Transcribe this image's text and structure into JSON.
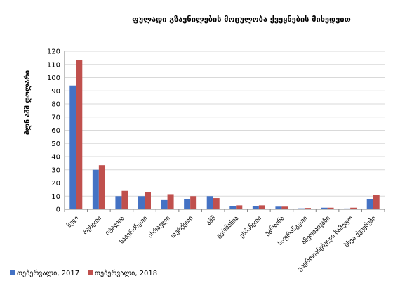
{
  "chart_data": {
    "type": "bar",
    "title": "ფულადი გზავნილების მოცულობა ქვეყნების მიხედვით",
    "ylabel": "მლნ აშშ დოლარი",
    "xlabel": "",
    "ylim": [
      0,
      120
    ],
    "y_ticks": [
      0,
      10,
      20,
      30,
      40,
      50,
      60,
      70,
      80,
      90,
      100,
      110,
      120
    ],
    "grid": true,
    "legend_position": "bottom",
    "categories": [
      "სულ",
      "რუსეთი",
      "იტალია",
      "საბერძნეთი",
      "ისრაელი",
      "თურქეთი",
      "აშშ",
      "გერმანია",
      "ესპანეთი",
      "უკრაინა",
      "საფრანგეთი",
      "აზერბაიჯანი",
      "გაერთიანებული სამეფო",
      "სხვა ქვეყნები"
    ],
    "series": [
      {
        "name": "თებერვალი, 2017",
        "color": "#4472C4",
        "values": [
          94,
          30,
          10,
          10,
          7,
          8,
          10,
          2.5,
          2.5,
          2,
          0.7,
          1.2,
          0.6,
          8
        ]
      },
      {
        "name": "თებერვალი, 2018",
        "color": "#C0504D",
        "values": [
          113.5,
          33.5,
          14,
          13,
          11.5,
          10,
          8.5,
          3,
          3,
          2,
          1,
          1.2,
          1.2,
          11
        ]
      }
    ]
  }
}
